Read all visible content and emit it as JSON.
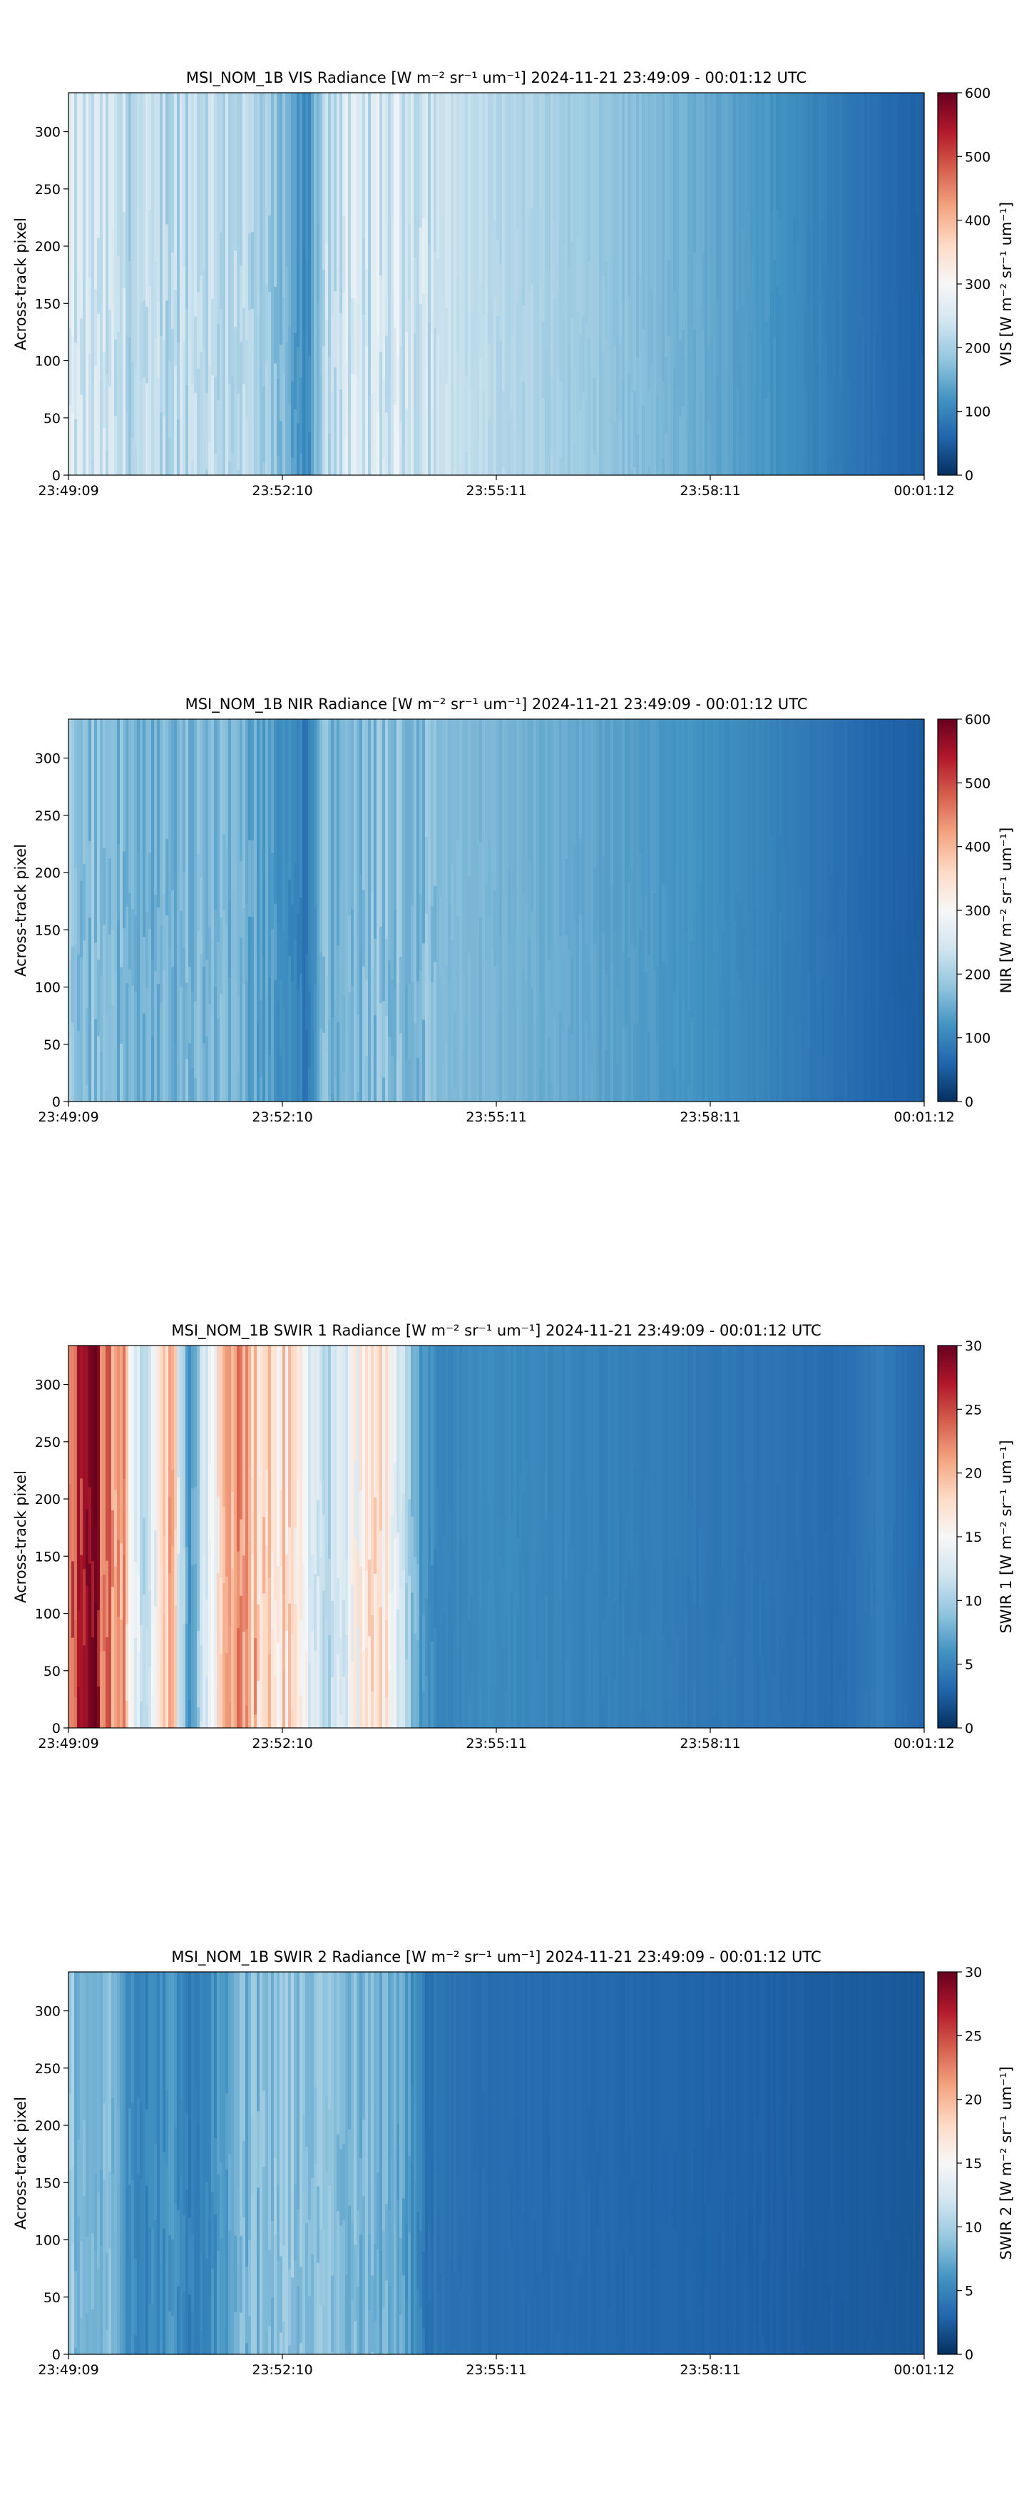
{
  "chart_data": [
    {
      "type": "heatmap",
      "title": "MSI_NOM_1B VIS Radiance [W m⁻² sr⁻¹ um⁻¹]    2024-11-21    23:49:09 - 00:01:12 UTC",
      "ylabel": "Across-track pixel",
      "x_ticks": [
        "23:49:09",
        "23:52:10",
        "23:55:11",
        "23:58:11",
        "00:01:12"
      ],
      "y_ticks": [
        0,
        50,
        100,
        150,
        200,
        250,
        300
      ],
      "ylim": [
        0,
        334
      ],
      "colorbar": {
        "label": "VIS [W m⁻² sr⁻¹ um⁻¹]",
        "ticks": [
          0,
          100,
          200,
          300,
          400,
          500,
          600
        ],
        "range": [
          0,
          600
        ],
        "colormap": "RdBu_r"
      },
      "column_profile": {
        "time_fraction": [
          0.0,
          0.05,
          0.1,
          0.15,
          0.2,
          0.25,
          0.28,
          0.3,
          0.35,
          0.4,
          0.42,
          0.5,
          0.6,
          0.7,
          0.8,
          0.85,
          0.9,
          0.95,
          1.0
        ],
        "mean_value": [
          240,
          230,
          210,
          230,
          220,
          160,
          100,
          230,
          240,
          250,
          240,
          215,
          190,
          160,
          130,
          110,
          90,
          70,
          55
        ]
      }
    },
    {
      "type": "heatmap",
      "title": "MSI_NOM_1B NIR Radiance [W m⁻² sr⁻¹ um⁻¹]    2024-11-21    23:49:09 - 00:01:12 UTC",
      "ylabel": "Across-track pixel",
      "x_ticks": [
        "23:49:09",
        "23:52:10",
        "23:55:11",
        "23:58:11",
        "00:01:12"
      ],
      "y_ticks": [
        0,
        50,
        100,
        150,
        200,
        250,
        300
      ],
      "ylim": [
        0,
        334
      ],
      "colorbar": {
        "label": "NIR [W m⁻² sr⁻¹ um⁻¹]",
        "ticks": [
          0,
          100,
          200,
          300,
          400,
          500,
          600
        ],
        "range": [
          0,
          600
        ],
        "colormap": "RdBu_r"
      },
      "column_profile": {
        "time_fraction": [
          0.0,
          0.05,
          0.1,
          0.15,
          0.2,
          0.25,
          0.28,
          0.3,
          0.35,
          0.4,
          0.42,
          0.5,
          0.6,
          0.7,
          0.8,
          0.85,
          0.9,
          0.95,
          1.0
        ],
        "mean_value": [
          175,
          165,
          150,
          160,
          155,
          120,
          80,
          165,
          170,
          175,
          170,
          160,
          145,
          125,
          105,
          90,
          75,
          60,
          50
        ]
      }
    },
    {
      "type": "heatmap",
      "title": "MSI_NOM_1B SWIR 1 Radiance [W m⁻² sr⁻¹ um⁻¹]    2024-11-21    23:49:09 - 00:01:12 UTC",
      "ylabel": "Across-track pixel",
      "x_ticks": [
        "23:49:09",
        "23:52:10",
        "23:55:11",
        "23:58:11",
        "00:01:12"
      ],
      "y_ticks": [
        0,
        50,
        100,
        150,
        200,
        250,
        300
      ],
      "ylim": [
        0,
        334
      ],
      "colorbar": {
        "label": "SWIR 1 [W m⁻² sr⁻¹ um⁻¹]",
        "ticks": [
          0,
          5,
          10,
          15,
          20,
          25,
          30
        ],
        "range": [
          0,
          30
        ],
        "colormap": "RdBu_r"
      },
      "column_profile": {
        "time_fraction": [
          0.0,
          0.03,
          0.06,
          0.09,
          0.12,
          0.14,
          0.16,
          0.19,
          0.22,
          0.25,
          0.28,
          0.3,
          0.33,
          0.36,
          0.39,
          0.41,
          0.43,
          0.5,
          0.6,
          0.7,
          0.8,
          0.9,
          0.95,
          1.0
        ],
        "mean_value": [
          25,
          27,
          22,
          10,
          20,
          6,
          12,
          21,
          20,
          18,
          14,
          10,
          14,
          19,
          12,
          7,
          5,
          5.5,
          5,
          4.5,
          4,
          3.5,
          4.5,
          3
        ]
      }
    },
    {
      "type": "heatmap",
      "title": "MSI_NOM_1B SWIR 2 Radiance [W m⁻² sr⁻¹ um⁻¹]    2024-11-21    23:49:09 - 00:01:12 UTC",
      "ylabel": "Across-track pixel",
      "x_ticks": [
        "23:49:09",
        "23:52:10",
        "23:55:11",
        "23:58:11",
        "00:01:12"
      ],
      "y_ticks": [
        0,
        50,
        100,
        150,
        200,
        250,
        300
      ],
      "ylim": [
        0,
        334
      ],
      "colorbar": {
        "label": "SWIR 2 [W m⁻² sr⁻¹ um⁻¹]",
        "ticks": [
          0,
          5,
          10,
          15,
          20,
          25,
          30
        ],
        "range": [
          0,
          30
        ],
        "colormap": "RdBu_r"
      },
      "column_profile": {
        "time_fraction": [
          0.0,
          0.05,
          0.08,
          0.12,
          0.15,
          0.2,
          0.25,
          0.3,
          0.35,
          0.39,
          0.42,
          0.5,
          0.6,
          0.7,
          0.8,
          0.9,
          1.0
        ],
        "mean_value": [
          9,
          8,
          5,
          6,
          4.5,
          8,
          9,
          8.5,
          8,
          7,
          4,
          3.5,
          3.3,
          3,
          2.8,
          2.5,
          2.2
        ]
      }
    }
  ]
}
